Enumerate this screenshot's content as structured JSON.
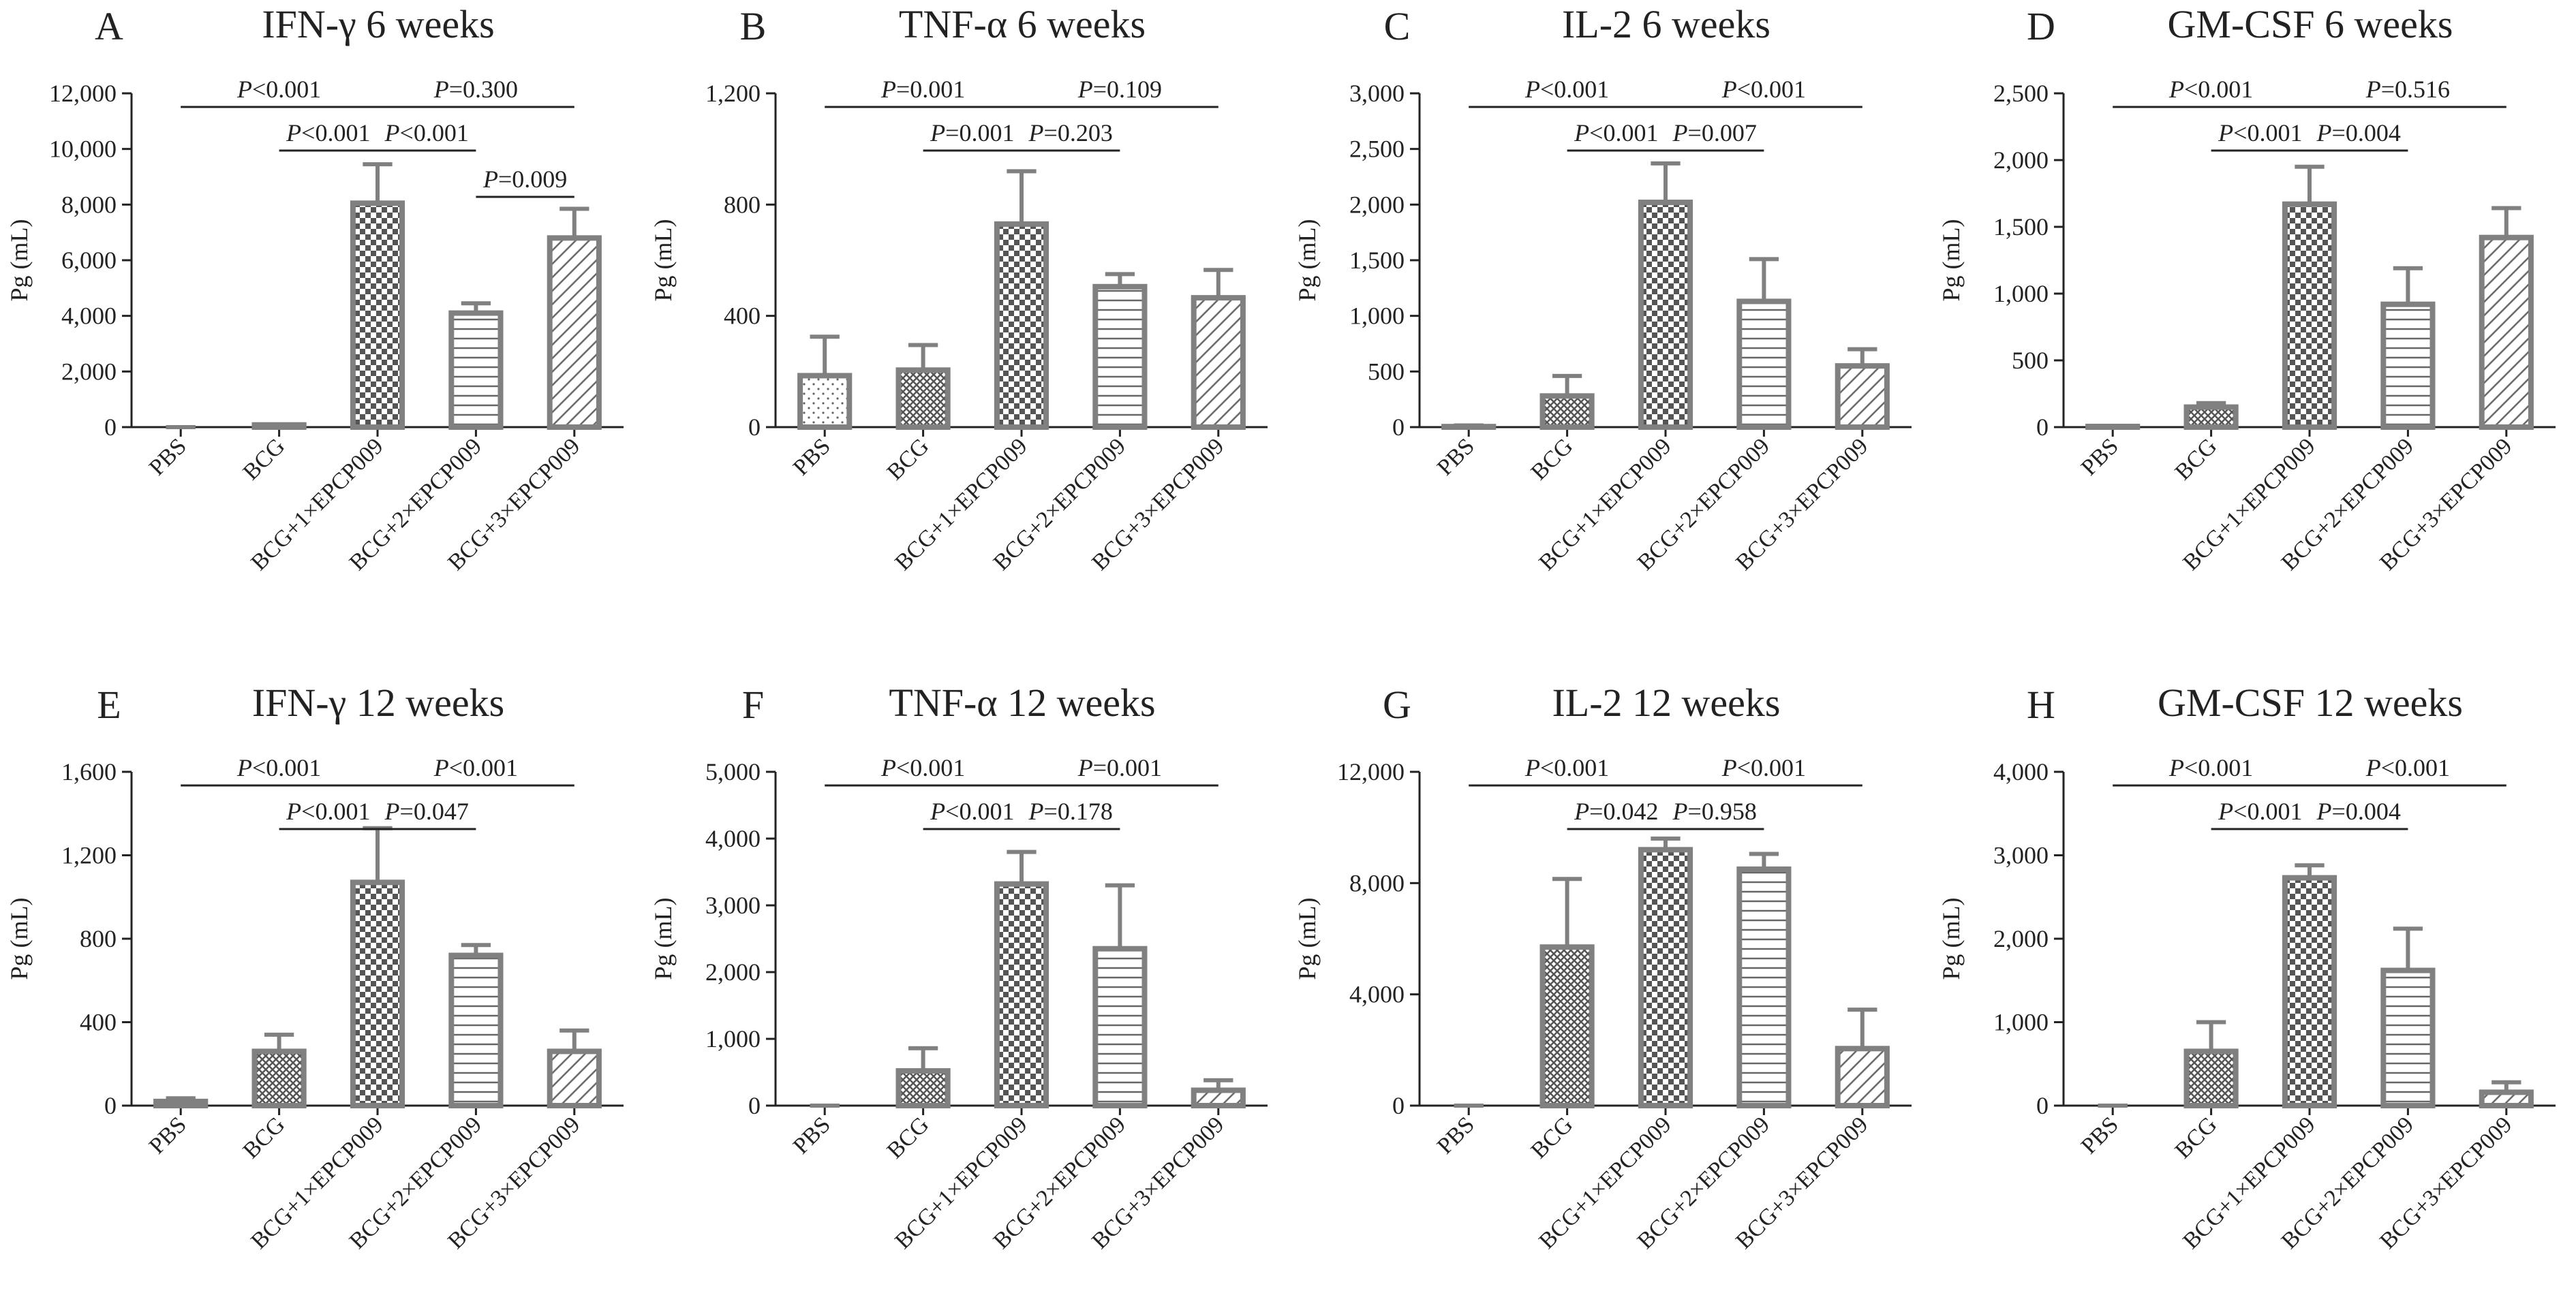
{
  "chart_data": [
    {
      "type": "bar",
      "panel": "A",
      "title": "IFN-γ 6 weeks",
      "y_label": "Pg (mL)",
      "categories": [
        "PBS",
        "BCG",
        "BCG+1×EPCP009",
        "BCG+2×EPCP009",
        "BCG+3×EPCP009"
      ],
      "values": [
        0,
        80,
        8050,
        4100,
        6800
      ],
      "errors": [
        0,
        0,
        1400,
        350,
        1050
      ],
      "ylim": [
        0,
        12000
      ],
      "yticks": [
        0,
        {
          "value": 2000,
          "label": "2,000"
        },
        {
          "value": 4000,
          "label": "4,000"
        },
        {
          "value": 6000,
          "label": "6,000"
        },
        {
          "value": 8000,
          "label": "8,000"
        },
        {
          "value": 10000,
          "label": "10,000"
        },
        {
          "value": 12000,
          "label": "12,000"
        }
      ],
      "comparisons": [
        {
          "between": [
            0,
            2
          ],
          "label": "P<0.001"
        },
        {
          "between": [
            2,
            4
          ],
          "label": "P=0.300"
        },
        {
          "between": [
            1,
            2
          ],
          "label": "P<0.001"
        },
        {
          "between": [
            2,
            3
          ],
          "label": "P<0.001"
        },
        {
          "between": [
            3,
            4
          ],
          "label": "P=0.009"
        }
      ]
    },
    {
      "type": "bar",
      "panel": "B",
      "title": "TNF-α 6 weeks",
      "y_label": "Pg (mL)",
      "categories": [
        "PBS",
        "BCG",
        "BCG+1×EPCP009",
        "BCG+2×EPCP009",
        "BCG+3×EPCP009"
      ],
      "values": [
        185,
        205,
        730,
        505,
        465
      ],
      "errors": [
        140,
        90,
        190,
        45,
        100
      ],
      "ylim": [
        0,
        1200
      ],
      "yticks": [
        0,
        400,
        800,
        {
          "value": 1200,
          "label": "1,200"
        }
      ],
      "comparisons": [
        {
          "between": [
            0,
            2
          ],
          "label": "P=0.001"
        },
        {
          "between": [
            2,
            4
          ],
          "label": "P=0.109"
        },
        {
          "between": [
            1,
            2
          ],
          "label": "P=0.001"
        },
        {
          "between": [
            2,
            3
          ],
          "label": "P=0.203"
        }
      ]
    },
    {
      "type": "bar",
      "panel": "C",
      "title": "IL-2 6 weeks",
      "y_label": "Pg (mL)",
      "categories": [
        "PBS",
        "BCG",
        "BCG+1×EPCP009",
        "BCG+2×EPCP009",
        "BCG+3×EPCP009"
      ],
      "values": [
        5,
        280,
        2020,
        1130,
        550
      ],
      "errors": [
        10,
        180,
        350,
        380,
        150
      ],
      "ylim": [
        0,
        3000
      ],
      "yticks": [
        0,
        500,
        {
          "value": 1000,
          "label": "1,000"
        },
        {
          "value": 1500,
          "label": "1,500"
        },
        {
          "value": 2000,
          "label": "2,000"
        },
        {
          "value": 2500,
          "label": "2,500"
        },
        {
          "value": 3000,
          "label": "3,000"
        }
      ],
      "comparisons": [
        {
          "between": [
            0,
            2
          ],
          "label": "P<0.001"
        },
        {
          "between": [
            2,
            4
          ],
          "label": "P<0.001"
        },
        {
          "between": [
            1,
            2
          ],
          "label": "P<0.001"
        },
        {
          "between": [
            2,
            3
          ],
          "label": "P=0.007"
        }
      ]
    },
    {
      "type": "bar",
      "panel": "D",
      "title": "GM-CSF 6 weeks",
      "y_label": "Pg (mL)",
      "categories": [
        "PBS",
        "BCG",
        "BCG+1×EPCP009",
        "BCG+2×EPCP009",
        "BCG+3×EPCP009"
      ],
      "values": [
        5,
        150,
        1670,
        920,
        1420
      ],
      "errors": [
        5,
        30,
        280,
        270,
        220
      ],
      "ylim": [
        0,
        2500
      ],
      "yticks": [
        0,
        500,
        {
          "value": 1000,
          "label": "1,000"
        },
        {
          "value": 1500,
          "label": "1,500"
        },
        {
          "value": 2000,
          "label": "2,000"
        },
        {
          "value": 2500,
          "label": "2,500"
        }
      ],
      "comparisons": [
        {
          "between": [
            0,
            2
          ],
          "label": "P<0.001"
        },
        {
          "between": [
            2,
            4
          ],
          "label": "P=0.516"
        },
        {
          "between": [
            1,
            2
          ],
          "label": "P<0.001"
        },
        {
          "between": [
            2,
            3
          ],
          "label": "P=0.004"
        }
      ]
    },
    {
      "type": "bar",
      "panel": "E",
      "title": "IFN-γ 12 weeks",
      "y_label": "Pg (mL)",
      "categories": [
        "PBS",
        "BCG",
        "BCG+1×EPCP009",
        "BCG+2×EPCP009",
        "BCG+3×EPCP009"
      ],
      "values": [
        20,
        260,
        1070,
        720,
        260
      ],
      "errors": [
        15,
        80,
        260,
        50,
        100
      ],
      "ylim": [
        0,
        1600
      ],
      "yticks": [
        0,
        400,
        800,
        {
          "value": 1200,
          "label": "1,200"
        },
        {
          "value": 1600,
          "label": "1,600"
        }
      ],
      "comparisons": [
        {
          "between": [
            0,
            2
          ],
          "label": "P<0.001"
        },
        {
          "between": [
            2,
            4
          ],
          "label": "P<0.001"
        },
        {
          "between": [
            1,
            2
          ],
          "label": "P<0.001"
        },
        {
          "between": [
            2,
            3
          ],
          "label": "P=0.047"
        }
      ]
    },
    {
      "type": "bar",
      "panel": "F",
      "title": "TNF-α 12 weeks",
      "y_label": "Pg (mL)",
      "categories": [
        "PBS",
        "BCG",
        "BCG+1×EPCP009",
        "BCG+2×EPCP009",
        "BCG+3×EPCP009"
      ],
      "values": [
        0,
        520,
        3320,
        2350,
        230
      ],
      "errors": [
        0,
        340,
        480,
        950,
        150
      ],
      "ylim": [
        0,
        5000
      ],
      "yticks": [
        0,
        {
          "value": 1000,
          "label": "1,000"
        },
        {
          "value": 2000,
          "label": "2,000"
        },
        {
          "value": 3000,
          "label": "3,000"
        },
        {
          "value": 4000,
          "label": "4,000"
        },
        {
          "value": 5000,
          "label": "5,000"
        }
      ],
      "comparisons": [
        {
          "between": [
            0,
            2
          ],
          "label": "P<0.001"
        },
        {
          "between": [
            2,
            4
          ],
          "label": "P=0.001"
        },
        {
          "between": [
            1,
            2
          ],
          "label": "P<0.001"
        },
        {
          "between": [
            2,
            3
          ],
          "label": "P=0.178"
        }
      ]
    },
    {
      "type": "bar",
      "panel": "G",
      "title": "IL-2 12 weeks",
      "y_label": "Pg (mL)",
      "categories": [
        "PBS",
        "BCG",
        "BCG+1×EPCP009",
        "BCG+2×EPCP009",
        "BCG+3×EPCP009"
      ],
      "values": [
        0,
        5700,
        9200,
        8500,
        2050
      ],
      "errors": [
        0,
        2450,
        400,
        550,
        1400
      ],
      "ylim": [
        0,
        12000
      ],
      "yticks": [
        0,
        {
          "value": 4000,
          "label": "4,000"
        },
        {
          "value": 8000,
          "label": "8,000"
        },
        {
          "value": 12000,
          "label": "12,000"
        }
      ],
      "comparisons": [
        {
          "between": [
            0,
            2
          ],
          "label": "P<0.001"
        },
        {
          "between": [
            2,
            4
          ],
          "label": "P<0.001"
        },
        {
          "between": [
            1,
            2
          ],
          "label": "P=0.042"
        },
        {
          "between": [
            2,
            3
          ],
          "label": "P=0.958"
        }
      ]
    },
    {
      "type": "bar",
      "panel": "H",
      "title": "GM-CSF 12 weeks",
      "y_label": "Pg (mL)",
      "categories": [
        "PBS",
        "BCG",
        "BCG+1×EPCP009",
        "BCG+2×EPCP009",
        "BCG+3×EPCP009"
      ],
      "values": [
        0,
        650,
        2730,
        1620,
        160
      ],
      "errors": [
        0,
        350,
        150,
        500,
        120
      ],
      "ylim": [
        0,
        4000
      ],
      "yticks": [
        0,
        {
          "value": 1000,
          "label": "1,000"
        },
        {
          "value": 2000,
          "label": "2,000"
        },
        {
          "value": 3000,
          "label": "3,000"
        },
        {
          "value": 4000,
          "label": "4,000"
        }
      ],
      "comparisons": [
        {
          "between": [
            0,
            2
          ],
          "label": "P<0.001"
        },
        {
          "between": [
            2,
            4
          ],
          "label": "P<0.001"
        },
        {
          "between": [
            1,
            2
          ],
          "label": "P<0.001"
        },
        {
          "between": [
            2,
            3
          ],
          "label": "P=0.004"
        }
      ]
    }
  ]
}
